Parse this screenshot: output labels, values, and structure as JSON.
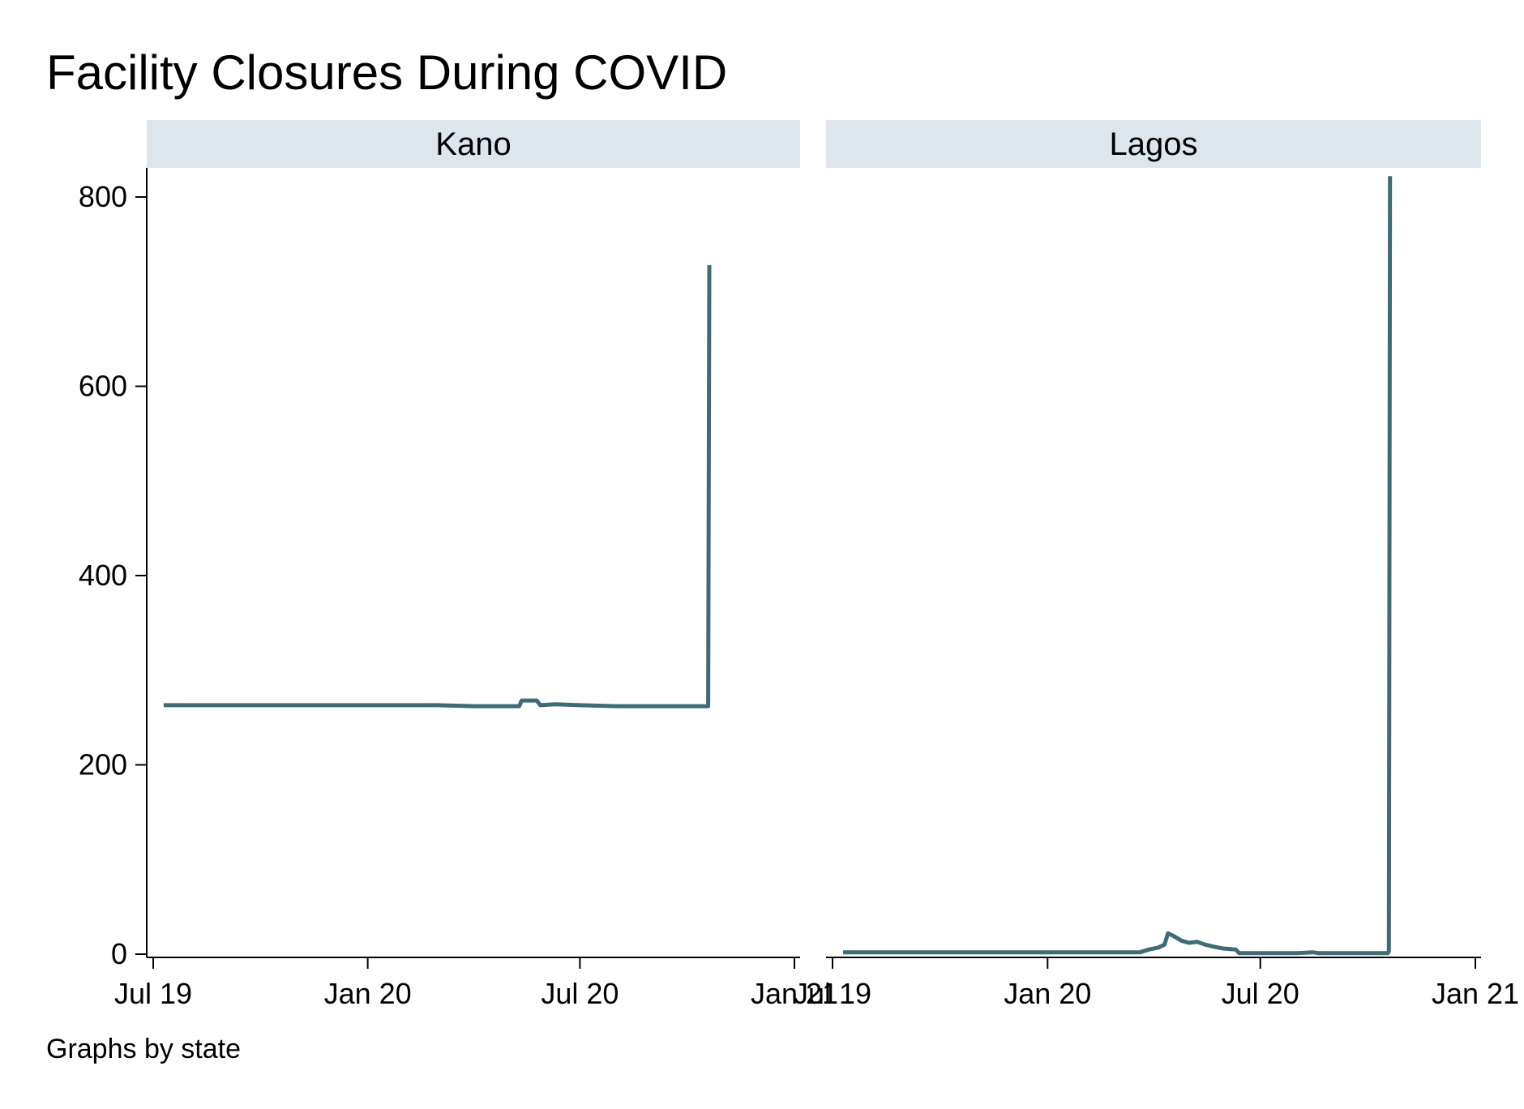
{
  "chart_data": {
    "type": "line",
    "title": "Facility Closures During COVID",
    "note": "Graphs by state",
    "xlabel": "",
    "ylabel": "",
    "ylim": [
      0,
      830
    ],
    "yticks": [
      0,
      200,
      400,
      600,
      800
    ],
    "xlim": [
      "2019-07-01",
      "2021-01-01"
    ],
    "xticks": [
      {
        "date": "2019-07-01",
        "label": "Jul 19"
      },
      {
        "date": "2020-01-01",
        "label": "Jan 20"
      },
      {
        "date": "2020-07-01",
        "label": "Jul 20"
      },
      {
        "date": "2021-01-01",
        "label": "Jan 21"
      }
    ],
    "line_color": "#3f6b74",
    "strip_color": "#dde6ec",
    "panels": [
      {
        "name": "Kano",
        "points": [
          [
            "2019-07-10",
            263
          ],
          [
            "2019-09-01",
            263
          ],
          [
            "2019-11-01",
            263
          ],
          [
            "2020-01-01",
            263
          ],
          [
            "2020-03-01",
            263
          ],
          [
            "2020-04-01",
            262
          ],
          [
            "2020-05-10",
            262
          ],
          [
            "2020-05-12",
            268
          ],
          [
            "2020-05-25",
            268
          ],
          [
            "2020-05-28",
            263
          ],
          [
            "2020-06-10",
            264
          ],
          [
            "2020-07-01",
            263
          ],
          [
            "2020-08-01",
            262
          ],
          [
            "2020-09-01",
            262
          ],
          [
            "2020-10-15",
            262
          ],
          [
            "2020-10-19",
            262
          ],
          [
            "2020-10-20",
            728
          ]
        ]
      },
      {
        "name": "Lagos",
        "points": [
          [
            "2019-07-10",
            2
          ],
          [
            "2019-09-01",
            2
          ],
          [
            "2019-11-01",
            2
          ],
          [
            "2020-01-01",
            2
          ],
          [
            "2020-03-01",
            2
          ],
          [
            "2020-03-20",
            2
          ],
          [
            "2020-03-28",
            5
          ],
          [
            "2020-04-05",
            7
          ],
          [
            "2020-04-10",
            10
          ],
          [
            "2020-04-13",
            22
          ],
          [
            "2020-04-18",
            19
          ],
          [
            "2020-04-25",
            14
          ],
          [
            "2020-05-01",
            12
          ],
          [
            "2020-05-08",
            13
          ],
          [
            "2020-05-15",
            10
          ],
          [
            "2020-05-22",
            8
          ],
          [
            "2020-05-30",
            6
          ],
          [
            "2020-06-10",
            5
          ],
          [
            "2020-06-13",
            1
          ],
          [
            "2020-07-01",
            1
          ],
          [
            "2020-08-01",
            1
          ],
          [
            "2020-08-15",
            2
          ],
          [
            "2020-08-20",
            1
          ],
          [
            "2020-09-15",
            1
          ],
          [
            "2020-10-18",
            1
          ],
          [
            "2020-10-19",
            3
          ],
          [
            "2020-10-20",
            822
          ]
        ]
      }
    ]
  }
}
